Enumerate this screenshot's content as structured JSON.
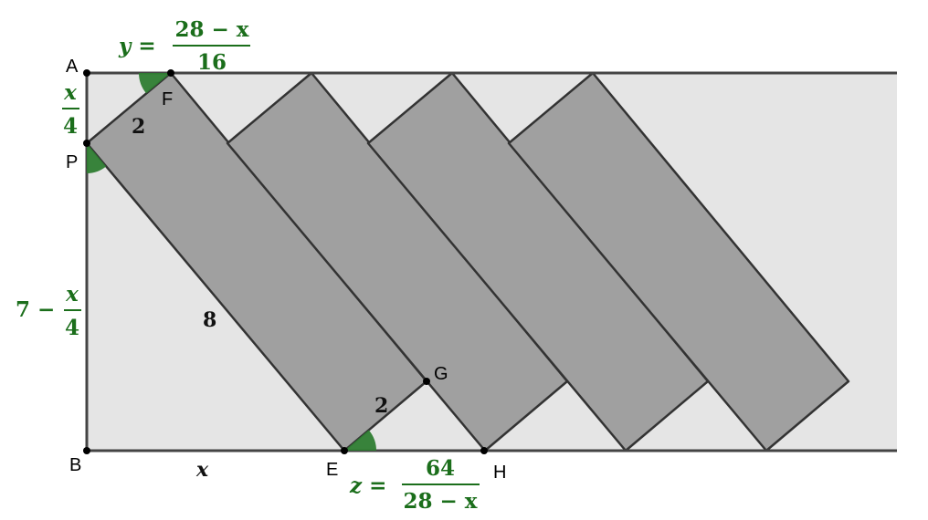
{
  "colors": {
    "background_strip": "#e5e5e5",
    "rectangle_fill": "#a0a0a0",
    "edge": "#333333",
    "angle_fill": "#2e7d32",
    "expression": "#1b6e1b"
  },
  "points": {
    "A": "A",
    "B": "B",
    "P": "P",
    "F": "F",
    "E": "E",
    "G": "G",
    "H": "H"
  },
  "lengths": {
    "pf": "2",
    "side_long": "8",
    "eg": "2",
    "be": "x"
  },
  "expressions": {
    "y": {
      "lhs": "y =",
      "numerator": "28 − x",
      "denominator": "16"
    },
    "ap": {
      "numerator": "x",
      "denominator": "4"
    },
    "pb": {
      "lhs": "7 −",
      "numerator": "x",
      "denominator": "4"
    },
    "z": {
      "lhs": "z =",
      "numerator": "64",
      "denominator": "28 − x"
    }
  },
  "rectangle_count": 4
}
